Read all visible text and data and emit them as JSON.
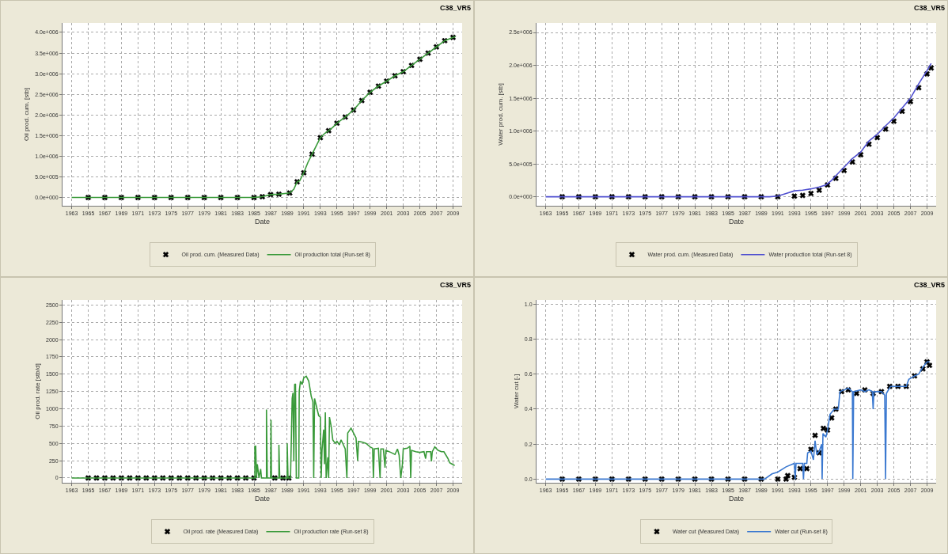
{
  "chart_data": [
    {
      "type": "line",
      "title": "C38_VR5",
      "xlabel": "Date",
      "ylabel": "Oil prod. cum. [stb]",
      "grid": true,
      "legend": "bottom",
      "xlim": [
        1961.9,
        2010.1
      ],
      "xticks": [
        1963,
        1965,
        1967,
        1969,
        1971,
        1973,
        1975,
        1977,
        1979,
        1981,
        1983,
        1985,
        1987,
        1989,
        1991,
        1993,
        1995,
        1997,
        1999,
        2001,
        2003,
        2005,
        2007,
        2009
      ],
      "ylim": [
        -200000,
        4230000
      ],
      "yticks": [
        {
          "value": 0,
          "label": "0.0e+000"
        },
        {
          "value": 500000,
          "label": "5.0e+005"
        },
        {
          "value": 1000000,
          "label": "1.0e+006"
        },
        {
          "value": 1500000,
          "label": "1.5e+006"
        },
        {
          "value": 2000000,
          "label": "2.0e+006"
        },
        {
          "value": 2500000,
          "label": "2.5e+006"
        },
        {
          "value": 3000000,
          "label": "3.0e+006"
        },
        {
          "value": 3500000,
          "label": "3.5e+006"
        },
        {
          "value": 4000000,
          "label": "4.0e+006"
        }
      ],
      "series": [
        {
          "name": "Oil prod. cum. (Measured Data)",
          "type": "scatter",
          "marker": "cross",
          "color": "#000000",
          "x": [
            1965,
            1967,
            1969,
            1971,
            1973,
            1975,
            1977,
            1979,
            1981,
            1983,
            1985,
            1986,
            1987,
            1988,
            1989.3,
            1990.2,
            1991,
            1992,
            1993,
            1994,
            1995,
            1996,
            1997,
            1998,
            1999,
            2000,
            2001,
            2002,
            2003,
            2004,
            2005,
            2006,
            2007,
            2008,
            2009
          ],
          "values": [
            0,
            0,
            0,
            0,
            0,
            0,
            0,
            0,
            0,
            0,
            0,
            20000,
            70000,
            80000,
            110000,
            380000,
            600000,
            1050000,
            1450000,
            1620000,
            1800000,
            1950000,
            2120000,
            2350000,
            2550000,
            2700000,
            2820000,
            2950000,
            3050000,
            3200000,
            3350000,
            3500000,
            3650000,
            3800000,
            3880000
          ]
        },
        {
          "name": "Oil production total (Run-set 8)",
          "color": "#3a9a3a",
          "x": [
            1963,
            1985,
            1986,
            1987,
            1988,
            1989.3,
            1989.8,
            1990.2,
            1990.5,
            1991,
            1991.5,
            1992,
            1992.5,
            1993,
            1993.5,
            1994,
            1994.5,
            1995,
            1996,
            1997,
            1998,
            1999,
            2000,
            2001,
            2002,
            2003,
            2004,
            2005,
            2006,
            2007,
            2008,
            2009,
            2009.3
          ],
          "values": [
            0,
            0,
            20000,
            70000,
            80000,
            110000,
            200000,
            380000,
            400000,
            600000,
            850000,
            1050000,
            1250000,
            1450000,
            1550000,
            1620000,
            1700000,
            1800000,
            1950000,
            2120000,
            2350000,
            2550000,
            2700000,
            2820000,
            2950000,
            3050000,
            3200000,
            3350000,
            3500000,
            3650000,
            3800000,
            3880000,
            3900000
          ]
        }
      ]
    },
    {
      "type": "line",
      "title": "C38_VR5",
      "xlabel": "Date",
      "ylabel": "Water prod. cum. [stb]",
      "grid": true,
      "legend": "bottom",
      "xlim": [
        1961.9,
        2010.1
      ],
      "xticks": [
        1963,
        1965,
        1967,
        1969,
        1971,
        1973,
        1975,
        1977,
        1979,
        1981,
        1983,
        1985,
        1987,
        1989,
        1991,
        1993,
        1995,
        1997,
        1999,
        2001,
        2003,
        2005,
        2007,
        2009
      ],
      "ylim": [
        -137000,
        2645000
      ],
      "yticks": [
        {
          "value": 0,
          "label": "0.0e+000"
        },
        {
          "value": 500000,
          "label": "5.0e+005"
        },
        {
          "value": 1000000,
          "label": "1.0e+006"
        },
        {
          "value": 1500000,
          "label": "1.5e+006"
        },
        {
          "value": 2000000,
          "label": "2.0e+006"
        },
        {
          "value": 2500000,
          "label": "2.5e+006"
        }
      ],
      "series": [
        {
          "name": "Water prod. cum. (Measured Data)",
          "type": "scatter",
          "marker": "cross",
          "color": "#000000",
          "x": [
            1965,
            1967,
            1969,
            1971,
            1973,
            1975,
            1977,
            1979,
            1981,
            1983,
            1985,
            1987,
            1989,
            1991,
            1993,
            1994,
            1995,
            1996,
            1997,
            1998,
            1999,
            2000,
            2001,
            2002,
            2003,
            2004,
            2005,
            2006,
            2007,
            2008,
            2009,
            2009.5
          ],
          "values": [
            0,
            0,
            0,
            0,
            0,
            0,
            0,
            0,
            0,
            0,
            0,
            0,
            0,
            0,
            10000,
            20000,
            50000,
            100000,
            180000,
            280000,
            400000,
            530000,
            640000,
            800000,
            900000,
            1030000,
            1150000,
            1300000,
            1450000,
            1660000,
            1870000,
            1960000
          ]
        },
        {
          "name": "Water production total (Run-set 8)",
          "color": "#5050d0",
          "x": [
            1963,
            1990,
            1991,
            1992,
            1993,
            1994,
            1995,
            1996,
            1996.8,
            1997.5,
            1998,
            1999,
            2000,
            2001,
            2002,
            2003,
            2004,
            2005,
            2006,
            2007,
            2008,
            2009,
            2009.5
          ],
          "values": [
            0,
            0,
            10000,
            50000,
            90000,
            100000,
            120000,
            150000,
            180000,
            250000,
            320000,
            450000,
            580000,
            680000,
            850000,
            950000,
            1080000,
            1200000,
            1350000,
            1500000,
            1720000,
            1920000,
            2030000
          ]
        }
      ]
    },
    {
      "type": "line",
      "title": "C38_VR5",
      "xlabel": "Date",
      "ylabel": "Oil prod. rate [stb/d]",
      "grid": true,
      "legend": "bottom",
      "xlim": [
        1961.9,
        2010.1
      ],
      "xticks": [
        1963,
        1965,
        1967,
        1969,
        1971,
        1973,
        1975,
        1977,
        1979,
        1981,
        1983,
        1985,
        1987,
        1989,
        1991,
        1993,
        1995,
        1997,
        1999,
        2001,
        2003,
        2005,
        2007,
        2009
      ],
      "ylim": [
        -69,
        2573
      ],
      "yticks": [
        0,
        250,
        500,
        750,
        1000,
        1250,
        1500,
        1750,
        2000,
        2250,
        2500
      ],
      "series": [
        {
          "name": "Oil prod. rate (Measured Data)",
          "type": "scatter",
          "marker": "cross",
          "color": "#000000",
          "x": [
            1965,
            1966,
            1967,
            1968,
            1969,
            1970,
            1971,
            1972,
            1973,
            1974,
            1975,
            1976,
            1977,
            1978,
            1979,
            1980,
            1981,
            1982,
            1983,
            1984,
            1985,
            1987.5,
            1988.5,
            1989.2
          ],
          "values": [
            0,
            0,
            0,
            0,
            0,
            0,
            0,
            0,
            0,
            0,
            0,
            0,
            0,
            0,
            0,
            0,
            0,
            0,
            0,
            0,
            0,
            0,
            0,
            0
          ]
        },
        {
          "name": "Oil production rate (Run-set 8)",
          "color": "#3a9a3a",
          "x": [
            1963,
            1985.1,
            1985.1,
            1985.2,
            1985.3,
            1985.4,
            1985.6,
            1985.8,
            1985.9,
            1986.5,
            1986.5,
            1986.6,
            1987,
            1987.05,
            1987.1,
            1988,
            1988,
            1988.1,
            1989,
            1989,
            1989.1,
            1989.4,
            1989.5,
            1989.6,
            1989.7,
            1989.8,
            1989.9,
            1990,
            1990.1,
            1990.4,
            1990.45,
            1990.6,
            1990.8,
            1991,
            1991.3,
            1991.6,
            1991.9,
            1992.1,
            1992.2,
            1992.3,
            1992.6,
            1992.8,
            1993,
            1993.1,
            1993.2,
            1993.4,
            1993.5,
            1993.6,
            1993.7,
            1993.9,
            1994,
            1994.1,
            1994.3,
            1994.5,
            1994.8,
            1995,
            1995.3,
            1995.5,
            1995.7,
            1996,
            1996.2,
            1996.3,
            1996.7,
            1997,
            1997.3,
            1997.5,
            1997.6,
            1998,
            1998.5,
            1999,
            1999.3,
            1999.4,
            1999.5,
            2000,
            2000.2,
            2000.3,
            2000.6,
            2000.8,
            2000.9,
            2001.5,
            2002,
            2002.3,
            2002.5,
            2002.7,
            2002.9,
            2003,
            2003.5,
            2003.8,
            2003.9,
            2004,
            2004.5,
            2005,
            2005.5,
            2005.7,
            2005.8,
            2006.3,
            2006.4,
            2006.5,
            2006.8,
            2007.2,
            2007.6,
            2007.9,
            2008.2,
            2008.4,
            2008.6,
            2008.9,
            2009.2
          ],
          "values": [
            0,
            0,
            460,
            460,
            0,
            200,
            0,
            130,
            0,
            0,
            990,
            0,
            0,
            840,
            0,
            0,
            480,
            0,
            0,
            500,
            0,
            0,
            560,
            1150,
            1230,
            240,
            1350,
            1360,
            0,
            0,
            1250,
            1400,
            1350,
            1450,
            1470,
            1400,
            1180,
            1100,
            0,
            1150,
            1000,
            900,
            880,
            0,
            400,
            700,
            200,
            950,
            0,
            300,
            0,
            880,
            750,
            550,
            500,
            530,
            480,
            550,
            500,
            420,
            0,
            650,
            720,
            650,
            580,
            250,
            530,
            520,
            500,
            450,
            430,
            0,
            420,
            430,
            0,
            420,
            420,
            150,
            400,
            370,
            340,
            420,
            330,
            0,
            200,
            420,
            430,
            460,
            0,
            400,
            380,
            370,
            380,
            280,
            380,
            380,
            240,
            380,
            450,
            400,
            380,
            380,
            320,
            280,
            220,
            200,
            180
          ]
        }
      ]
    },
    {
      "type": "line",
      "title": "C38_VR5",
      "xlabel": "Date",
      "ylabel": "Water cut [-]",
      "grid": true,
      "legend": "bottom",
      "xlim": [
        1961.9,
        2010.1
      ],
      "xticks": [
        1963,
        1965,
        1967,
        1969,
        1971,
        1973,
        1975,
        1977,
        1979,
        1981,
        1983,
        1985,
        1987,
        1989,
        1991,
        1993,
        1995,
        1997,
        1999,
        2001,
        2003,
        2005,
        2007,
        2009
      ],
      "ylim": [
        -0.021,
        1.024
      ],
      "yticks": [
        {
          "value": 0,
          "label": "0.0"
        },
        0.2,
        0.4,
        0.6,
        0.8,
        {
          "value": 1,
          "label": "1.0"
        }
      ],
      "series": [
        {
          "name": "Water cut (Measured Data)",
          "type": "scatter",
          "marker": "cross",
          "color": "#000000",
          "x": [
            1965,
            1967,
            1969,
            1971,
            1973,
            1975,
            1977,
            1979,
            1981,
            1983,
            1985,
            1987,
            1989,
            1991,
            1992,
            1992.2,
            1993,
            1993.7,
            1994.5,
            1995,
            1995.5,
            1996,
            1996.5,
            1997,
            1997.5,
            1998,
            1998.7,
            1999.5,
            2000.5,
            2001.5,
            2002.5,
            2003.5,
            2004.5,
            2005.5,
            2006.5,
            2007.5,
            2008.5,
            2009,
            2009.3
          ],
          "values": [
            0,
            0,
            0,
            0,
            0,
            0,
            0,
            0,
            0,
            0,
            0,
            0,
            0,
            0,
            0,
            0.02,
            0.01,
            0.06,
            0.06,
            0.17,
            0.25,
            0.15,
            0.29,
            0.28,
            0.35,
            0.4,
            0.5,
            0.51,
            0.49,
            0.51,
            0.49,
            0.5,
            0.53,
            0.53,
            0.53,
            0.59,
            0.63,
            0.67,
            0.65
          ]
        },
        {
          "name": "Water cut (Run-set 8)",
          "color": "#3a78d0",
          "x": [
            1963,
            1989.4,
            1990.3,
            1991,
            1992,
            1993,
            1993.1,
            1993.2,
            1994,
            1994.1,
            1994.2,
            1994.5,
            1994.6,
            1995,
            1995.3,
            1995.5,
            1995.7,
            1996,
            1996.3,
            1996.35,
            1996.45,
            1996.8,
            1997,
            1997.3,
            1997.8,
            1998.3,
            1998.5,
            1999,
            1999.5,
            2000,
            2000.05,
            2000.15,
            2001,
            2001.5,
            2002,
            2002.4,
            2002.5,
            2002.6,
            2003.5,
            2003.9,
            2004,
            2004.1,
            2004.6,
            2005,
            2006.5,
            2006.8,
            2007.5,
            2008,
            2008.5,
            2009,
            2009.3
          ],
          "values": [
            0,
            0,
            0.03,
            0.04,
            0.07,
            0.09,
            0,
            0.09,
            0.09,
            0,
            0.09,
            0.09,
            0.15,
            0.16,
            0.11,
            0.22,
            0.14,
            0.16,
            0.2,
            0,
            0.26,
            0.24,
            0.28,
            0.37,
            0.4,
            0.4,
            0.5,
            0.51,
            0.52,
            0.5,
            0,
            0.5,
            0.51,
            0.5,
            0.51,
            0.5,
            0.4,
            0.5,
            0.5,
            0.48,
            0,
            0.49,
            0.53,
            0.53,
            0.53,
            0.57,
            0.59,
            0.6,
            0.64,
            0.67,
            0.67
          ]
        }
      ]
    }
  ]
}
